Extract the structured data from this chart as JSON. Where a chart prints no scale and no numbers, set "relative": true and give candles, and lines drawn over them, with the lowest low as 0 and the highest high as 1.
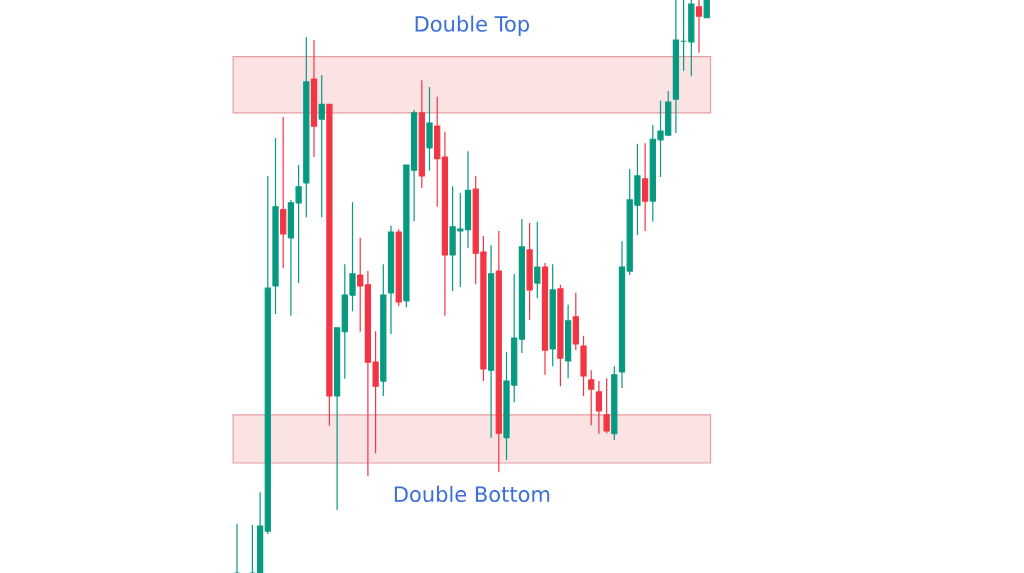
{
  "chart_data": {
    "type": "candlestick",
    "relative": true,
    "categories": [
      null,
      null,
      null,
      null,
      null,
      null,
      null,
      null,
      null,
      null,
      null,
      null,
      null,
      null,
      null,
      null,
      null,
      null,
      null,
      null,
      null,
      null,
      null,
      null,
      null,
      null,
      null,
      null,
      null,
      null,
      null,
      null,
      null,
      null,
      null,
      null,
      null,
      null,
      null,
      null,
      null,
      null,
      null,
      null,
      null,
      null,
      null,
      null,
      null,
      null,
      null,
      null,
      null,
      null,
      null,
      null,
      null,
      null,
      null,
      null,
      null,
      null
    ],
    "ohlc": [
      [
        0,
        0.086,
        0,
        0
      ],
      null,
      [
        0,
        0.084,
        0,
        0
      ],
      [
        0,
        0.141,
        0,
        0.082
      ],
      [
        0.073,
        0.693,
        0.068,
        0.497
      ],
      [
        0.501,
        0.759,
        0.452,
        0.639
      ],
      [
        0.634,
        0.796,
        0.532,
        0.592
      ],
      [
        0.585,
        0.651,
        0.449,
        0.646
      ],
      [
        0.646,
        0.712,
        0.506,
        0.674
      ],
      [
        0.681,
        0.935,
        0.621,
        0.857
      ],
      [
        0.862,
        0.93,
        0.726,
        0.78
      ],
      [
        0.792,
        0.869,
        0.621,
        0.818
      ],
      [
        0.818,
        0.818,
        0.257,
        0.309
      ],
      [
        0.309,
        0.428,
        0.11,
        0.428
      ],
      [
        0.421,
        0.539,
        0.339,
        0.485
      ],
      [
        0.485,
        0.647,
        0.457,
        0.522
      ],
      [
        0.52,
        0.585,
        0.421,
        0.501
      ],
      [
        0.503,
        0.527,
        0.169,
        0.368
      ],
      [
        0.368,
        0.422,
        0.209,
        0.326
      ],
      [
        0.335,
        0.539,
        0.309,
        0.485
      ],
      [
        0.489,
        0.606,
        0.417,
        0.595
      ],
      [
        0.595,
        0.6,
        0.466,
        0.473
      ],
      [
        0.475,
        0.712,
        0.464,
        0.712
      ],
      [
        0.703,
        0.808,
        0.614,
        0.803
      ],
      [
        0.803,
        0.86,
        0.672,
        0.693
      ],
      [
        0.742,
        0.848,
        0.702,
        0.785
      ],
      [
        0.78,
        0.831,
        0.639,
        0.723
      ],
      [
        0.726,
        0.77,
        0.449,
        0.555
      ],
      [
        0.555,
        0.675,
        0.492,
        0.604
      ],
      [
        0.597,
        0.663,
        0.499,
        0.6
      ],
      [
        0.599,
        0.736,
        0.567,
        0.668
      ],
      [
        0.67,
        0.693,
        0.504,
        0.558
      ],
      [
        0.56,
        0.588,
        0.335,
        0.356
      ],
      [
        0.354,
        0.572,
        0.236,
        0.522
      ],
      [
        0.527,
        0.597,
        0.176,
        0.244
      ],
      [
        0.236,
        0.386,
        0.197,
        0.335
      ],
      [
        0.328,
        0.522,
        0.298,
        0.41
      ],
      [
        0.408,
        0.618,
        0.384,
        0.569
      ],
      [
        0.564,
        0.611,
        0.442,
        0.494
      ],
      [
        0.506,
        0.613,
        0.48,
        0.534
      ],
      [
        0.534,
        0.541,
        0.346,
        0.389
      ],
      [
        0.391,
        0.539,
        0.361,
        0.494
      ],
      [
        0.496,
        0.503,
        0.326,
        0.375
      ],
      [
        0.37,
        0.468,
        0.34,
        0.44
      ],
      [
        0.447,
        0.489,
        0.389,
        0.4
      ],
      [
        0.396,
        0.414,
        0.309,
        0.344
      ],
      [
        0.337,
        0.354,
        0.258,
        0.321
      ],
      [
        0.316,
        0.335,
        0.243,
        0.283
      ],
      [
        0.276,
        0.34,
        0.244,
        0.248
      ],
      [
        0.243,
        0.361,
        0.232,
        0.346
      ],
      [
        0.351,
        0.579,
        0.323,
        0.534
      ],
      [
        0.527,
        0.705,
        0.52,
        0.651
      ],
      [
        0.642,
        0.749,
        0.59,
        0.693
      ],
      [
        0.688,
        0.75,
        0.597,
        0.649
      ],
      [
        0.649,
        0.782,
        0.613,
        0.757
      ],
      [
        0.756,
        0.824,
        0.691,
        0.771
      ],
      [
        0.764,
        0.841,
        0.764,
        0.822
      ],
      [
        0.827,
        1,
        0.768,
        0.93
      ],
      [
        0.928,
        1,
        0.876,
        0.928
      ],
      [
        0.927,
        1,
        0.867,
        0.993
      ],
      [
        0.988,
        1,
        0.908,
        0.972
      ],
      [
        0.969,
        1,
        0.969,
        1
      ]
    ],
    "colors": [
      "#089981",
      null,
      "#089981",
      "#089981",
      "#089981",
      "#089981",
      "#f23645",
      "#089981",
      "#089981",
      "#089981",
      "#f23645",
      "#089981",
      "#f23645",
      "#089981",
      "#089981",
      "#089981",
      "#f23645",
      "#f23645",
      "#f23645",
      "#089981",
      "#089981",
      "#f23645",
      "#089981",
      "#089981",
      "#f23645",
      "#089981",
      "#f23645",
      "#f23645",
      "#089981",
      "#089981",
      "#089981",
      "#f23645",
      "#f23645",
      "#089981",
      "#f23645",
      "#089981",
      "#089981",
      "#089981",
      "#f23645",
      "#089981",
      "#f23645",
      "#089981",
      "#f23645",
      "#089981",
      "#f23645",
      "#f23645",
      "#f23645",
      "#f23645",
      "#f23645",
      "#089981",
      "#089981",
      "#089981",
      "#089981",
      "#f23645",
      "#089981",
      "#089981",
      "#089981",
      "#089981",
      "#089981",
      "#089981",
      "#f23645",
      "#089981"
    ],
    "bands": [
      {
        "axis": "y",
        "from": 0.803,
        "to": 0.901,
        "label": "Double Top",
        "color": "#fbe3e3"
      },
      {
        "axis": "y",
        "from": 0.192,
        "to": 0.276,
        "label": "Double Bottom",
        "color": "#fbe3e3"
      }
    ]
  }
}
